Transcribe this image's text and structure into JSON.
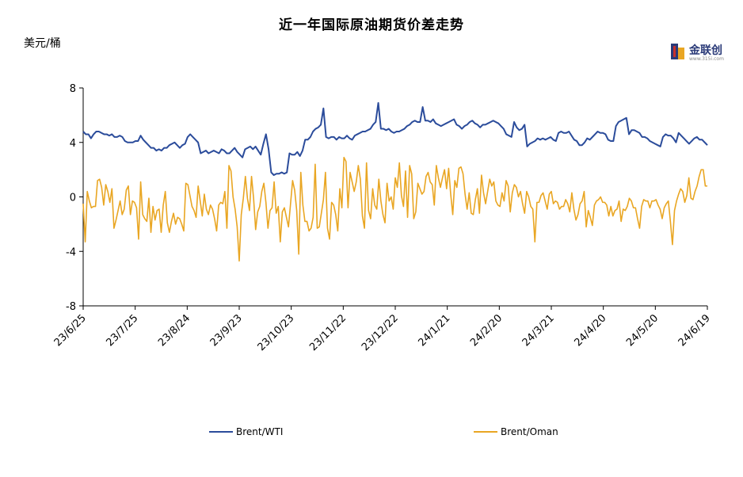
{
  "chart_data": {
    "type": "line",
    "title": "近一年国际原油期货价差走势",
    "ylabel": "美元/桶",
    "xlabel": "",
    "ylim": [
      -8,
      8
    ],
    "yticks": [
      8,
      4,
      0,
      -4,
      -8
    ],
    "x_tick_labels": [
      "23/6/25",
      "23/7/25",
      "23/8/24",
      "23/9/23",
      "23/10/23",
      "23/11/22",
      "23/12/22",
      "24/1/21",
      "24/2/20",
      "24/3/21",
      "24/4/20",
      "24/5/20",
      "24/6/19"
    ],
    "legend_position": "bottom",
    "grid": false,
    "series": [
      {
        "name": "Brent/WTI",
        "color": "#2b4c9b",
        "values": [
          4.8,
          4.6,
          4.6,
          4.3,
          4.6,
          4.8,
          4.8,
          4.7,
          4.6,
          4.6,
          4.5,
          4.6,
          4.4,
          4.4,
          4.5,
          4.4,
          4.1,
          4.0,
          4.0,
          4.0,
          4.1,
          4.1,
          4.5,
          4.2,
          4.0,
          3.8,
          3.6,
          3.6,
          3.4,
          3.5,
          3.4,
          3.6,
          3.6,
          3.8,
          3.9,
          4.0,
          3.8,
          3.6,
          3.8,
          3.9,
          4.4,
          4.6,
          4.4,
          4.2,
          4.0,
          3.2,
          3.3,
          3.4,
          3.2,
          3.3,
          3.4,
          3.3,
          3.2,
          3.5,
          3.4,
          3.2,
          3.2,
          3.4,
          3.6,
          3.3,
          3.1,
          2.9,
          3.5,
          3.6,
          3.7,
          3.5,
          3.7,
          3.4,
          3.1,
          3.9,
          4.6,
          3.5,
          1.8,
          1.6,
          1.7,
          1.7,
          1.8,
          1.7,
          1.8,
          3.2,
          3.1,
          3.1,
          3.3,
          3.0,
          3.4,
          4.2,
          4.2,
          4.4,
          4.8,
          5.0,
          5.1,
          5.3,
          6.5,
          4.4,
          4.3,
          4.4,
          4.4,
          4.2,
          4.4,
          4.3,
          4.3,
          4.5,
          4.3,
          4.2,
          4.5,
          4.6,
          4.7,
          4.8,
          4.8,
          4.9,
          5.0,
          5.3,
          5.5,
          6.9,
          5.0,
          5.0,
          4.9,
          5.0,
          4.8,
          4.7,
          4.8,
          4.8,
          4.9,
          5.0,
          5.2,
          5.3,
          5.5,
          5.6,
          5.5,
          5.5,
          6.6,
          5.6,
          5.6,
          5.5,
          5.7,
          5.4,
          5.3,
          5.2,
          5.3,
          5.4,
          5.5,
          5.6,
          5.7,
          5.3,
          5.2,
          5.0,
          5.2,
          5.3,
          5.5,
          5.6,
          5.4,
          5.3,
          5.1,
          5.3,
          5.3,
          5.4,
          5.5,
          5.6,
          5.5,
          5.4,
          5.2,
          5.0,
          4.6,
          4.5,
          4.4,
          5.5,
          5.1,
          4.9,
          5.0,
          5.3,
          3.7,
          3.9,
          4.0,
          4.1,
          4.3,
          4.2,
          4.3,
          4.2,
          4.3,
          4.4,
          4.2,
          4.1,
          4.7,
          4.8,
          4.7,
          4.7,
          4.8,
          4.5,
          4.2,
          4.1,
          3.8,
          3.8,
          4.0,
          4.3,
          4.2,
          4.4,
          4.6,
          4.8,
          4.7,
          4.7,
          4.6,
          4.2,
          4.1,
          4.1,
          5.2,
          5.5,
          5.6,
          5.7,
          5.8,
          4.6,
          4.9,
          4.9,
          4.8,
          4.7,
          4.4,
          4.4,
          4.3,
          4.1,
          4.0,
          3.9,
          3.8,
          3.7,
          4.4,
          4.6,
          4.5,
          4.5,
          4.3,
          4.0,
          4.7,
          4.5,
          4.3,
          4.1,
          3.9,
          4.1,
          4.3,
          4.4,
          4.2,
          4.2,
          4.0,
          3.8
        ]
      },
      {
        "name": "Brent/Oman",
        "color": "#e9a623",
        "values": [
          -0.5,
          -3.3,
          0.4,
          -0.3,
          -0.8,
          -0.7,
          -0.7,
          1.2,
          1.3,
          0.7,
          -0.6,
          0.9,
          0.4,
          -0.4,
          0.6,
          -2.3,
          -1.7,
          -1.0,
          -0.3,
          -1.3,
          -0.9,
          0.5,
          0.8,
          -1.3,
          -0.3,
          -0.4,
          -0.8,
          -3.1,
          1.1,
          -1.3,
          -1.6,
          -1.8,
          -0.1,
          -2.6,
          -0.7,
          -1.7,
          -1.0,
          -0.9,
          -2.6,
          -0.6,
          0.4,
          -1.9,
          -2.6,
          -1.8,
          -1.2,
          -2.0,
          -1.5,
          -1.6,
          -2.0,
          -2.5,
          1.0,
          0.9,
          0.1,
          -0.7,
          -1.0,
          -1.5,
          0.8,
          -0.3,
          -1.4,
          0.2,
          -0.9,
          -1.3,
          -0.6,
          -0.9,
          -1.6,
          -2.5,
          -0.6,
          -0.4,
          -0.5,
          0.4,
          -2.3,
          2.3,
          1.9,
          0.0,
          -0.9,
          -2.2,
          -4.7,
          -1.3,
          -0.1,
          1.5,
          -0.1,
          -1.0,
          1.5,
          -0.1,
          -2.4,
          -1.1,
          -0.7,
          0.4,
          1.0,
          -0.4,
          -2.3,
          -1.0,
          -0.8,
          1.1,
          -1.2,
          -0.7,
          -3.3,
          -1.1,
          -0.8,
          -1.5,
          -2.2,
          -0.5,
          1.2,
          0.5,
          -1.0,
          -4.2,
          1.8,
          -0.6,
          -1.8,
          -1.8,
          -2.5,
          -2.3,
          -1.5,
          2.4,
          -2.3,
          -2.2,
          -1.2,
          -0.2,
          1.8,
          -2.3,
          -3.1,
          -0.4,
          -0.6,
          -1.3,
          -2.5,
          0.6,
          -0.8,
          2.9,
          2.6,
          -0.8,
          1.8,
          1.1,
          0.4,
          1.1,
          2.3,
          1.3,
          -1.4,
          -2.3,
          2.5,
          -1.0,
          -1.6,
          0.6,
          -0.6,
          -0.9,
          1.3,
          -0.3,
          -1.3,
          -1.9,
          1.0,
          -0.3,
          0.0,
          -0.9,
          1.4,
          0.7,
          2.5,
          0.1,
          -0.7,
          1.9,
          -1.5,
          2.3,
          1.7,
          -1.6,
          -1.1,
          1.0,
          0.6,
          0.2,
          0.4,
          1.5,
          1.8,
          1.1,
          0.9,
          -0.6,
          2.3,
          1.4,
          0.7,
          1.4,
          2.0,
          0.6,
          2.1,
          0.2,
          -1.3,
          1.2,
          0.7,
          2.1,
          2.2,
          1.7,
          0.2,
          -0.9,
          0.3,
          -1.2,
          -1.3,
          -0.2,
          0.6,
          -1.2,
          1.6,
          0.3,
          -0.5,
          0.4,
          1.3,
          0.8,
          1.1,
          -0.3,
          -0.6,
          -0.7,
          0.3,
          -0.3,
          1.2,
          0.8,
          -1.1,
          0.3,
          0.9,
          0.7,
          0.0,
          0.4,
          -0.5,
          -1.2,
          0.4,
          0.0,
          -0.7,
          -0.9,
          -3.3,
          -0.4,
          -0.4,
          0.1,
          0.3,
          -0.3,
          -0.9,
          0.2,
          0.4,
          -0.5,
          -0.3,
          -0.4,
          -0.9,
          -0.7,
          -0.7,
          -0.2,
          -0.5,
          -1.1,
          0.3,
          -0.9,
          -1.7,
          -1.3,
          -0.5,
          -0.3,
          0.4,
          -2.2,
          -1.0,
          -1.5,
          -2.1,
          -0.6,
          -0.3,
          -0.2,
          0.0,
          -0.4,
          -0.4,
          -0.6,
          -1.4,
          -0.7,
          -1.4,
          -1.0,
          -0.9,
          -0.3,
          -1.8,
          -0.9,
          -1.0,
          -0.7,
          -0.1,
          -0.3,
          -0.8,
          -0.8,
          -1.6,
          -2.3,
          -0.7,
          -0.2,
          -0.3,
          -0.3,
          -0.8,
          -0.3,
          -0.3,
          -0.2,
          -0.6,
          -0.9,
          -1.6,
          -0.8,
          -0.5,
          -0.3,
          -1.8,
          -3.5,
          -1.0,
          -0.3,
          0.2,
          0.6,
          0.4,
          -0.4,
          0.1,
          1.4,
          -0.1,
          -0.2,
          0.4,
          0.8,
          1.5,
          2.0,
          2.0,
          0.8,
          0.8
        ]
      }
    ]
  },
  "logo": {
    "text": "金联创",
    "sub": "www.315i.com"
  }
}
